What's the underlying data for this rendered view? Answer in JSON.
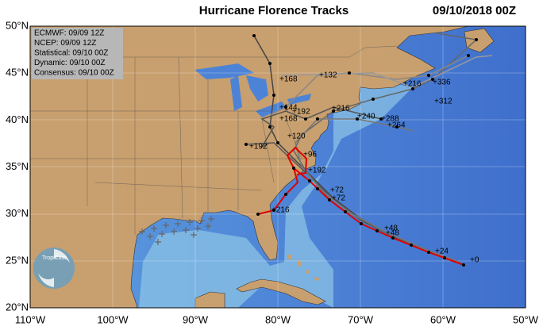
{
  "header": {
    "title": "Hurricane Florence Tracks",
    "timestamp": "09/10/2018 00Z"
  },
  "legend": [
    "ECMWF: 09/09 12Z",
    "NCEP: 09/09 12Z",
    "Statistical: 09/10 00Z",
    "Dynamic: 09/10 00Z",
    "Consensus: 09/10 00Z"
  ],
  "lat_labels": [
    "50°N",
    "45°N",
    "40°N",
    "35°N",
    "30°N",
    "25°N",
    "20°N"
  ],
  "lon_labels": [
    "110°W",
    "100°W",
    "90°W",
    "80°W",
    "70°W",
    "60°W",
    "50°W"
  ],
  "track_labels": [
    "+168",
    "+132",
    "+216",
    "+336",
    "+312",
    "+216",
    "+240",
    "+144",
    "+192",
    "+168",
    "+288",
    "+264",
    "+192",
    "+120",
    "+96",
    "+192",
    "+72",
    "+72",
    "+216",
    "+48",
    "+48",
    "+24",
    "+0"
  ],
  "logo": "TropiCast"
}
